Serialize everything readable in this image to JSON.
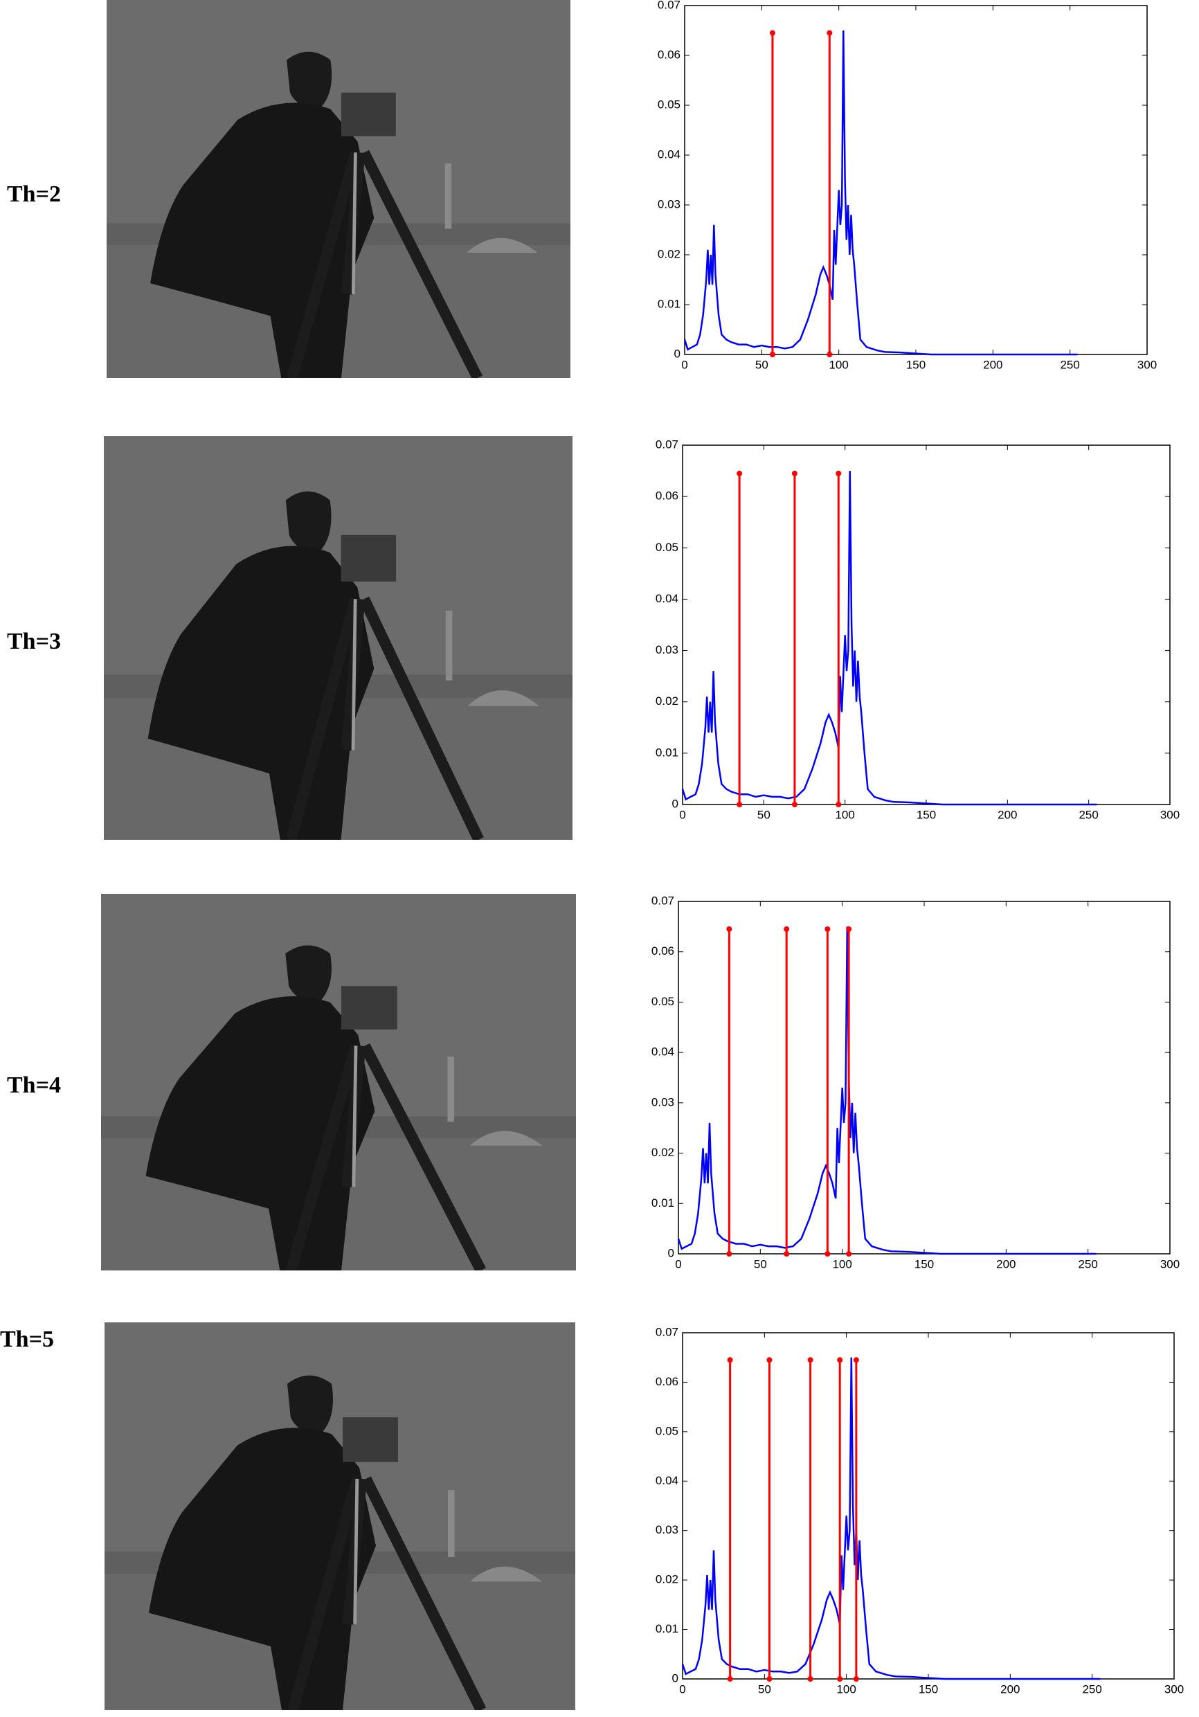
{
  "row_labels": [
    "Th=2",
    "Th=3",
    "Th=4",
    "Th=5"
  ],
  "chart_data": [
    {
      "type": "stem-line",
      "xlim": [
        0,
        300
      ],
      "xticks": [
        0,
        50,
        100,
        150,
        200,
        250,
        300
      ],
      "ylim": [
        0,
        0.07
      ],
      "yticks": [
        0,
        0.01,
        0.02,
        0.03,
        0.04,
        0.05,
        0.06,
        0.07
      ],
      "series": [
        {
          "type": "line",
          "color": "#0000ff",
          "x": [
            0,
            2,
            5,
            8,
            10,
            12,
            14,
            15,
            16,
            17,
            18,
            19,
            20,
            22,
            24,
            27,
            30,
            35,
            40,
            45,
            50,
            55,
            60,
            65,
            70,
            75,
            80,
            85,
            88,
            90,
            92,
            94,
            96,
            97,
            98,
            100,
            101,
            102,
            103,
            104,
            105,
            106,
            107,
            108,
            109,
            110,
            112,
            114,
            118,
            125,
            130,
            140,
            150,
            160,
            200,
            255
          ],
          "values": [
            0.003,
            0.001,
            0.0015,
            0.002,
            0.004,
            0.008,
            0.015,
            0.021,
            0.014,
            0.02,
            0.014,
            0.026,
            0.016,
            0.008,
            0.004,
            0.003,
            0.0025,
            0.002,
            0.002,
            0.0015,
            0.0018,
            0.0015,
            0.0015,
            0.0012,
            0.0015,
            0.003,
            0.007,
            0.012,
            0.016,
            0.0175,
            0.016,
            0.014,
            0.011,
            0.025,
            0.018,
            0.033,
            0.026,
            0.03,
            0.065,
            0.035,
            0.023,
            0.03,
            0.02,
            0.028,
            0.021,
            0.018,
            0.01,
            0.003,
            0.0015,
            0.0008,
            0.0005,
            0.0004,
            0.0002,
            0,
            0,
            0
          ]
        },
        {
          "type": "stem",
          "color": "#ff0000",
          "x": [
            57,
            94
          ],
          "values": [
            0.0645,
            0.0645
          ]
        }
      ]
    },
    {
      "type": "stem-line",
      "xlim": [
        0,
        300
      ],
      "xticks": [
        0,
        50,
        100,
        150,
        200,
        250,
        300
      ],
      "ylim": [
        0,
        0.07
      ],
      "yticks": [
        0,
        0.01,
        0.02,
        0.03,
        0.04,
        0.05,
        0.06,
        0.07
      ],
      "series": [
        {
          "type": "line",
          "color": "#0000ff",
          "x": [
            0,
            2,
            5,
            8,
            10,
            12,
            14,
            15,
            16,
            17,
            18,
            19,
            20,
            22,
            24,
            27,
            30,
            35,
            40,
            45,
            50,
            55,
            60,
            65,
            70,
            75,
            80,
            85,
            88,
            90,
            92,
            94,
            96,
            97,
            98,
            100,
            101,
            102,
            103,
            104,
            105,
            106,
            107,
            108,
            109,
            110,
            112,
            114,
            118,
            125,
            130,
            140,
            150,
            160,
            200,
            255
          ],
          "values": [
            0.003,
            0.001,
            0.0015,
            0.002,
            0.004,
            0.008,
            0.015,
            0.021,
            0.014,
            0.02,
            0.014,
            0.026,
            0.016,
            0.008,
            0.004,
            0.003,
            0.0025,
            0.002,
            0.002,
            0.0015,
            0.0018,
            0.0015,
            0.0015,
            0.0012,
            0.0015,
            0.003,
            0.007,
            0.012,
            0.016,
            0.0175,
            0.016,
            0.014,
            0.011,
            0.025,
            0.018,
            0.033,
            0.026,
            0.03,
            0.065,
            0.035,
            0.023,
            0.03,
            0.02,
            0.028,
            0.021,
            0.018,
            0.01,
            0.003,
            0.0015,
            0.0008,
            0.0005,
            0.0004,
            0.0002,
            0,
            0,
            0
          ]
        },
        {
          "type": "stem",
          "color": "#ff0000",
          "x": [
            35,
            69,
            96
          ],
          "values": [
            0.0645,
            0.0645,
            0.0645
          ]
        }
      ]
    },
    {
      "type": "stem-line",
      "xlim": [
        0,
        300
      ],
      "xticks": [
        0,
        50,
        100,
        150,
        200,
        250,
        300
      ],
      "ylim": [
        0,
        0.07
      ],
      "yticks": [
        0,
        0.01,
        0.02,
        0.03,
        0.04,
        0.05,
        0.06,
        0.07
      ],
      "series": [
        {
          "type": "line",
          "color": "#0000ff",
          "x": [
            0,
            2,
            5,
            8,
            10,
            12,
            14,
            15,
            16,
            17,
            18,
            19,
            20,
            22,
            24,
            27,
            30,
            35,
            40,
            45,
            50,
            55,
            60,
            65,
            70,
            75,
            80,
            85,
            88,
            90,
            92,
            94,
            96,
            97,
            98,
            100,
            101,
            102,
            103,
            104,
            105,
            106,
            107,
            108,
            109,
            110,
            112,
            114,
            118,
            125,
            130,
            140,
            150,
            160,
            200,
            255
          ],
          "values": [
            0.003,
            0.001,
            0.0015,
            0.002,
            0.004,
            0.008,
            0.015,
            0.021,
            0.014,
            0.02,
            0.014,
            0.026,
            0.016,
            0.008,
            0.004,
            0.003,
            0.0025,
            0.002,
            0.002,
            0.0015,
            0.0018,
            0.0015,
            0.0015,
            0.0012,
            0.0015,
            0.003,
            0.007,
            0.012,
            0.016,
            0.0175,
            0.016,
            0.014,
            0.011,
            0.025,
            0.018,
            0.033,
            0.026,
            0.03,
            0.065,
            0.035,
            0.023,
            0.03,
            0.02,
            0.028,
            0.021,
            0.018,
            0.01,
            0.003,
            0.0015,
            0.0008,
            0.0005,
            0.0004,
            0.0002,
            0,
            0,
            0
          ]
        },
        {
          "type": "stem",
          "color": "#ff0000",
          "x": [
            31,
            66,
            91,
            104
          ],
          "values": [
            0.0645,
            0.0645,
            0.0645,
            0.0645
          ]
        }
      ]
    },
    {
      "type": "stem-line",
      "xlim": [
        0,
        300
      ],
      "xticks": [
        0,
        50,
        100,
        150,
        200,
        250,
        300
      ],
      "ylim": [
        0,
        0.07
      ],
      "yticks": [
        0,
        0.01,
        0.02,
        0.03,
        0.04,
        0.05,
        0.06,
        0.07
      ],
      "series": [
        {
          "type": "line",
          "color": "#0000ff",
          "x": [
            0,
            2,
            5,
            8,
            10,
            12,
            14,
            15,
            16,
            17,
            18,
            19,
            20,
            22,
            24,
            27,
            30,
            35,
            40,
            45,
            50,
            55,
            60,
            65,
            70,
            75,
            80,
            85,
            88,
            90,
            92,
            94,
            96,
            97,
            98,
            100,
            101,
            102,
            103,
            104,
            105,
            106,
            107,
            108,
            109,
            110,
            112,
            114,
            118,
            125,
            130,
            140,
            150,
            160,
            200,
            255
          ],
          "values": [
            0.003,
            0.001,
            0.0015,
            0.002,
            0.004,
            0.008,
            0.015,
            0.021,
            0.014,
            0.02,
            0.014,
            0.026,
            0.016,
            0.008,
            0.004,
            0.003,
            0.0025,
            0.002,
            0.002,
            0.0015,
            0.0018,
            0.0015,
            0.0015,
            0.0012,
            0.0015,
            0.003,
            0.007,
            0.012,
            0.016,
            0.0175,
            0.016,
            0.014,
            0.011,
            0.025,
            0.018,
            0.033,
            0.026,
            0.03,
            0.065,
            0.035,
            0.023,
            0.03,
            0.02,
            0.028,
            0.021,
            0.018,
            0.01,
            0.003,
            0.0015,
            0.0008,
            0.0005,
            0.0004,
            0.0002,
            0,
            0,
            0
          ]
        },
        {
          "type": "stem",
          "color": "#ff0000",
          "x": [
            29,
            53,
            78,
            96,
            106
          ],
          "values": [
            0.0645,
            0.0645,
            0.0645,
            0.0645,
            0.0645
          ]
        }
      ]
    }
  ]
}
